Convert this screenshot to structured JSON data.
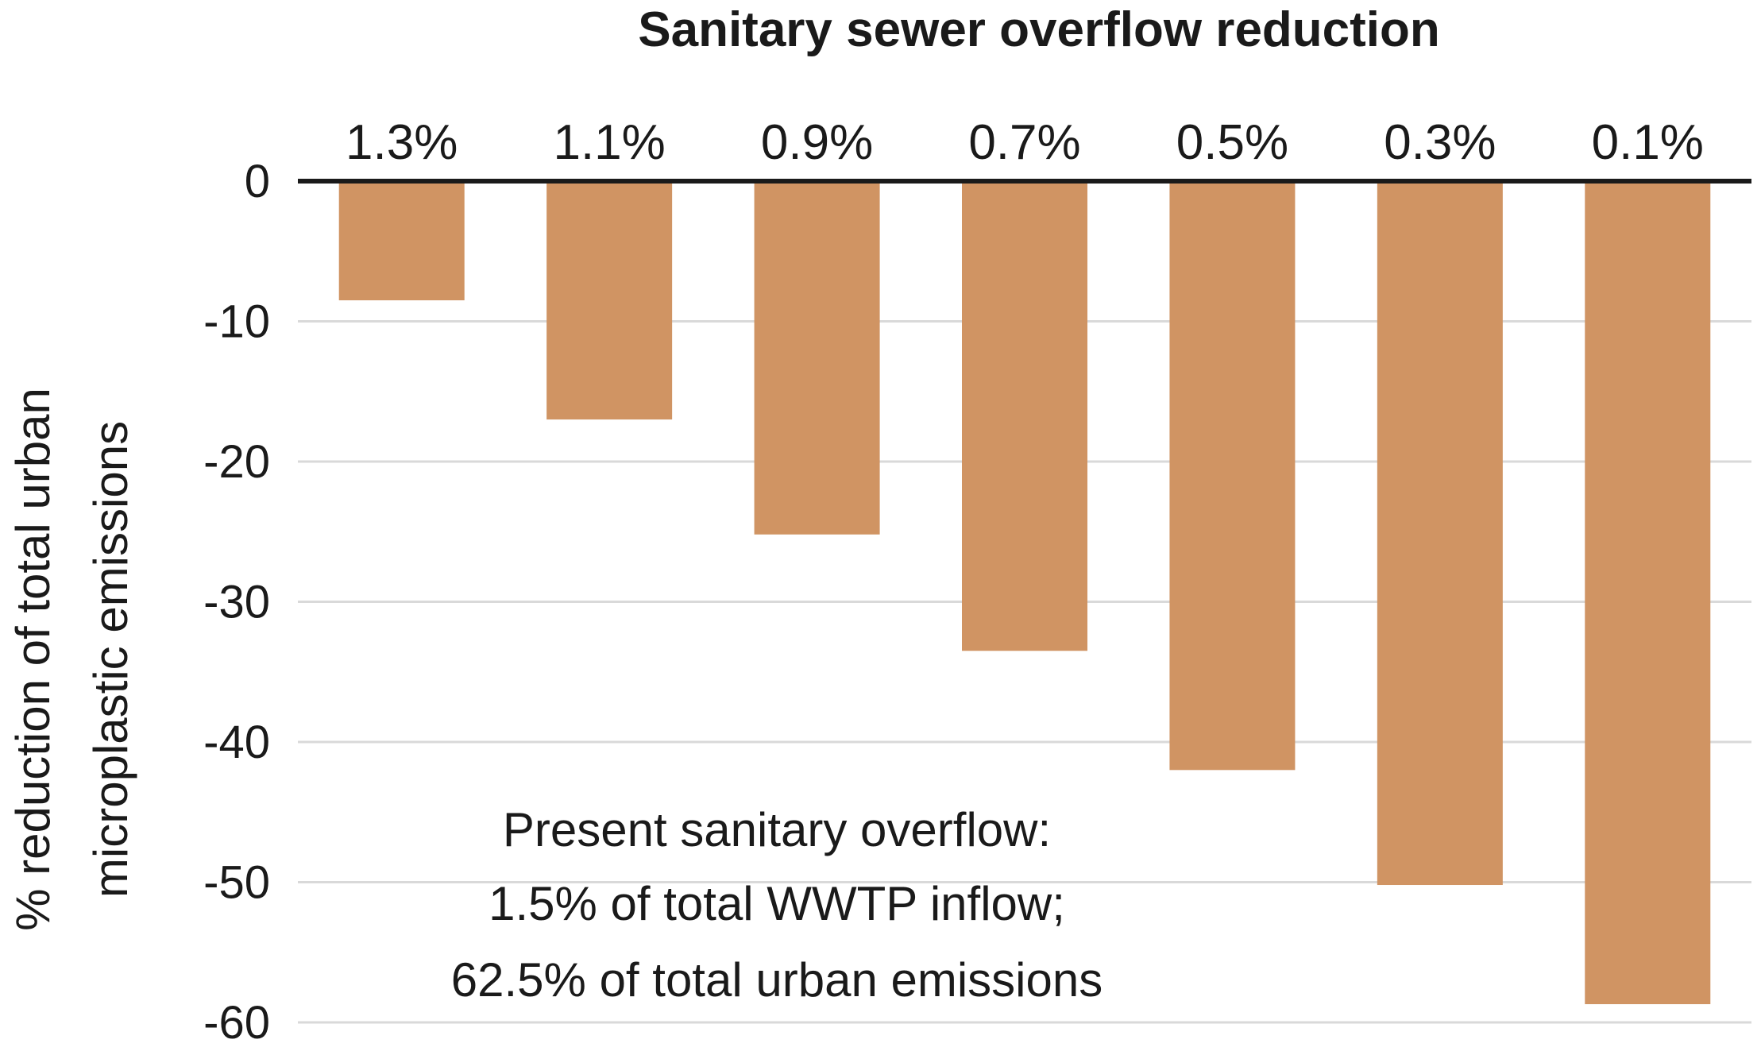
{
  "chart_data": {
    "type": "bar",
    "title": "Sanitary sewer overflow reduction",
    "categories": [
      "1.3%",
      "1.1%",
      "0.9%",
      "0.7%",
      "0.5%",
      "0.3%",
      "0.1%"
    ],
    "values": [
      -8.5,
      -17,
      -25.2,
      -33.5,
      -42,
      -50.2,
      -58.7
    ],
    "ylabel": [
      "% reduction of total urban",
      "microplastic emissions"
    ],
    "xlabel": "",
    "ylim": [
      -60,
      0
    ],
    "yticks": [
      0,
      -10,
      -20,
      -30,
      -40,
      -50,
      -60
    ],
    "ytick_labels": [
      "0",
      "-10",
      "-20",
      "-30",
      "-40",
      "-50",
      "-60"
    ],
    "grid": true,
    "bar_color": "#d09463",
    "axis_color": "#1a1a1a",
    "grid_color": "#d9d9d9",
    "annotation": [
      "Present sanitary overflow:",
      "1.5% of total WWTP inflow;",
      "62.5% of total urban emissions"
    ]
  }
}
